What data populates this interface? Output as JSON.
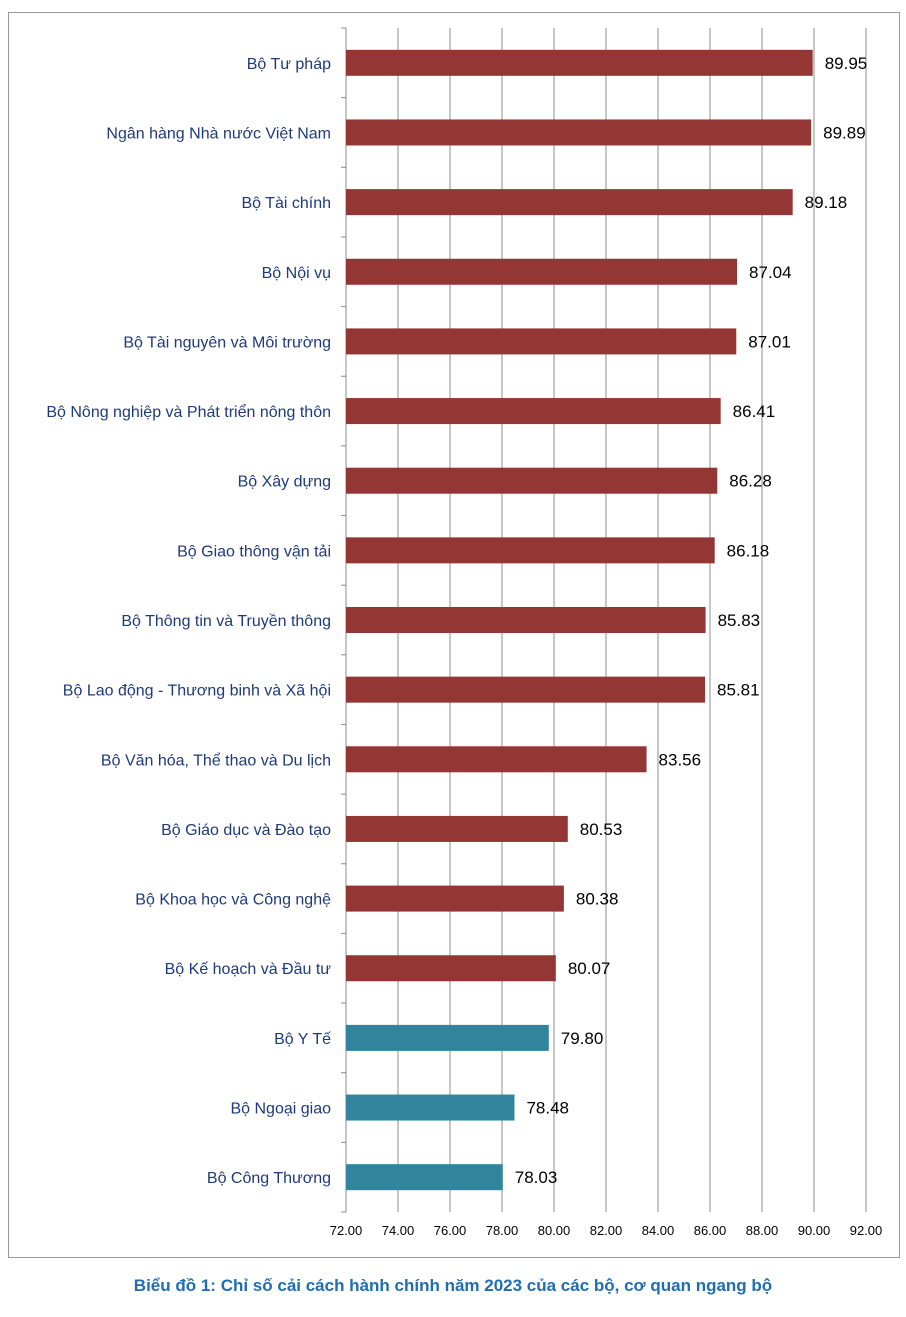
{
  "caption": "Biểu đồ 1: Chỉ số cải cách hành chính năm 2023 của các bộ, cơ quan ngang bộ",
  "chart_data": {
    "type": "bar",
    "orientation": "horizontal",
    "title": "",
    "xlabel": "",
    "ylabel": "",
    "xlim": [
      72,
      92
    ],
    "x_ticks": [
      "72.00",
      "74.00",
      "76.00",
      "78.00",
      "80.00",
      "82.00",
      "84.00",
      "86.00",
      "88.00",
      "90.00",
      "92.00"
    ],
    "grid": "vertical",
    "categories": [
      "Bộ Tư pháp",
      "Ngân hàng Nhà nước Việt Nam",
      "Bộ Tài chính",
      "Bộ Nội vụ",
      "Bộ Tài nguyên và Môi trường",
      "Bộ Nông nghiệp và Phát triển nông thôn",
      "Bộ Xây dựng",
      "Bộ Giao thông vận tải",
      "Bộ Thông tin và Truyền thông",
      "Bộ Lao động - Thương binh và Xã hội",
      "Bộ Văn hóa, Thể thao và Du lịch",
      "Bộ Giáo dục và Đào tạo",
      "Bộ Khoa học và Công nghệ",
      "Bộ Kế hoạch và Đầu tư",
      "Bộ Y Tế",
      "Bộ Ngoại giao",
      "Bộ Công Thương"
    ],
    "values": [
      89.95,
      89.89,
      89.18,
      87.04,
      87.01,
      86.41,
      86.28,
      86.18,
      85.83,
      85.81,
      83.56,
      80.53,
      80.38,
      80.07,
      79.8,
      78.48,
      78.03
    ],
    "value_labels": [
      "89.95",
      "89.89",
      "89.18",
      "87.04",
      "87.01",
      "86.41",
      "86.28",
      "86.18",
      "85.83",
      "85.81",
      "83.56",
      "80.53",
      "80.38",
      "80.07",
      "79.80",
      "78.48",
      "78.03"
    ],
    "colors": {
      "above_80": "#943634",
      "below_80": "#31849b",
      "category_text": "#1f3a7a",
      "value_text": "#000000",
      "grid": "#8c8c8c",
      "caption": "#1f6db3"
    }
  }
}
